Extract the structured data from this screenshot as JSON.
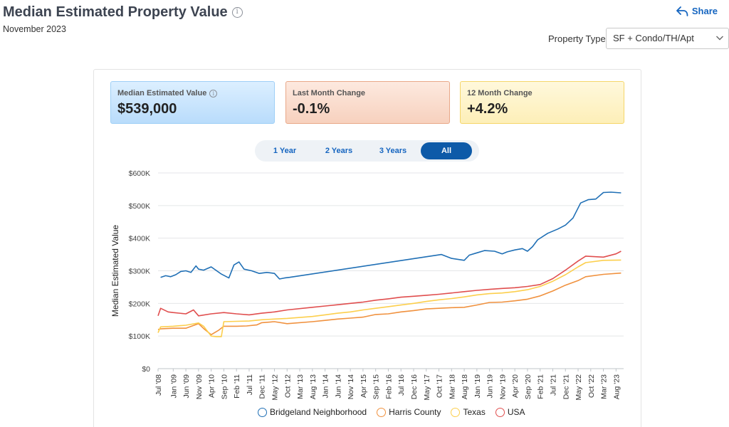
{
  "header": {
    "title": "Median Estimated Property Value",
    "subtitle": "November 2023",
    "share_label": "Share"
  },
  "filter": {
    "label": "Property Type",
    "value": "SF + Condo/TH/Apt"
  },
  "stats": [
    {
      "label": "Median Estimated Value",
      "value": "$539,000"
    },
    {
      "label": "Last Month Change",
      "value": "-0.1%"
    },
    {
      "label": "12 Month Change",
      "value": "+4.2%"
    }
  ],
  "range_buttons": [
    "1 Year",
    "2 Years",
    "3 Years",
    "All"
  ],
  "active_range": "All",
  "colors": {
    "Bridgeland Neighborhood": "#1f6fb5",
    "Harris County": "#f0913e",
    "Texas": "#fccf4d",
    "USA": "#e04e4e",
    "accent": "#1565c0"
  },
  "chart_data": {
    "type": "line",
    "ylabel": "Median Estimated Value",
    "xlabel": "",
    "ylim": [
      0,
      600000
    ],
    "yticks": [
      0,
      100000,
      200000,
      300000,
      400000,
      500000,
      600000
    ],
    "yticklabels": [
      "$0",
      "$100K",
      "$200K",
      "$300K",
      "$400K",
      "$500K",
      "$600K"
    ],
    "xlim": [
      "2008-07",
      "2023-11"
    ],
    "xticks": [
      "2008-07",
      "2009-01",
      "2009-06",
      "2009-11",
      "2010-04",
      "2010-09",
      "2011-02",
      "2011-07",
      "2011-12",
      "2012-05",
      "2012-10",
      "2013-03",
      "2013-08",
      "2014-01",
      "2014-06",
      "2014-11",
      "2015-04",
      "2015-09",
      "2016-02",
      "2016-07",
      "2016-12",
      "2017-05",
      "2017-10",
      "2018-03",
      "2018-08",
      "2019-01",
      "2019-06",
      "2019-11",
      "2020-04",
      "2020-09",
      "2021-02",
      "2021-07",
      "2021-12",
      "2022-05",
      "2022-10",
      "2023-03",
      "2023-08"
    ],
    "xticklabels": [
      "Jul '08",
      "Jan '09",
      "Jun '09",
      "Nov '09",
      "Apr '10",
      "Sep '10",
      "Feb '11",
      "Jul '11",
      "Dec '11",
      "May '12",
      "Oct '12",
      "Mar '13",
      "Aug '13",
      "Jan '14",
      "Jun '14",
      "Nov '14",
      "Apr '15",
      "Sep '15",
      "Feb '16",
      "Jul '16",
      "Dec '16",
      "May '17",
      "Oct '17",
      "Mar '18",
      "Aug '18",
      "Jan '19",
      "Jun '19",
      "Nov '19",
      "Apr '20",
      "Sep '20",
      "Feb '21",
      "Jul '21",
      "Dec '21",
      "May '22",
      "Oct '22",
      "Mar '23",
      "Aug '23"
    ],
    "grid": true,
    "legend_position": "bottom",
    "series": [
      {
        "name": "Bridgeland Neighborhood",
        "x": [
          "2008-08",
          "2008-10",
          "2008-12",
          "2009-02",
          "2009-04",
          "2009-06",
          "2009-08",
          "2009-10",
          "2009-11",
          "2010-01",
          "2010-04",
          "2010-08",
          "2010-11",
          "2011-01",
          "2011-03",
          "2011-05",
          "2011-08",
          "2011-11",
          "2012-02",
          "2012-05",
          "2012-07",
          "2012-09",
          "2012-11",
          "2017-11",
          "2018-03",
          "2018-08",
          "2018-10",
          "2019-01",
          "2019-04",
          "2019-08",
          "2019-11",
          "2020-01",
          "2020-04",
          "2020-07",
          "2020-09",
          "2020-11",
          "2021-01",
          "2021-05",
          "2021-09",
          "2021-12",
          "2022-03",
          "2022-06",
          "2022-09",
          "2022-12",
          "2023-03",
          "2023-06",
          "2023-10"
        ],
        "y": [
          280000,
          285000,
          282000,
          288000,
          298000,
          300000,
          295000,
          315000,
          305000,
          302000,
          312000,
          290000,
          278000,
          318000,
          327000,
          305000,
          300000,
          292000,
          295000,
          292000,
          275000,
          278000,
          280000,
          350000,
          338000,
          332000,
          348000,
          355000,
          362000,
          360000,
          352000,
          358000,
          364000,
          368000,
          360000,
          374000,
          395000,
          415000,
          428000,
          440000,
          462000,
          508000,
          518000,
          520000,
          540000,
          541000,
          539000
        ]
      },
      {
        "name": "Harris County",
        "x": [
          "2008-07",
          "2008-08",
          "2009-01",
          "2009-06",
          "2009-11",
          "2010-01",
          "2010-04",
          "2010-07",
          "2010-09",
          "2011-02",
          "2011-06",
          "2011-10",
          "2011-12",
          "2012-05",
          "2012-10",
          "2013-08",
          "2014-01",
          "2014-06",
          "2014-11",
          "2015-04",
          "2015-09",
          "2016-02",
          "2016-07",
          "2016-12",
          "2017-05",
          "2017-10",
          "2018-03",
          "2018-08",
          "2019-01",
          "2019-06",
          "2019-11",
          "2020-04",
          "2020-09",
          "2021-02",
          "2021-07",
          "2021-12",
          "2022-05",
          "2022-08",
          "2023-03",
          "2023-10"
        ],
        "y": [
          120000,
          122000,
          124000,
          124000,
          138000,
          123000,
          104000,
          118000,
          130000,
          130000,
          131000,
          134000,
          141000,
          144000,
          138000,
          144000,
          148000,
          152000,
          155000,
          158000,
          166000,
          168000,
          174000,
          178000,
          183000,
          185000,
          187000,
          188000,
          195000,
          203000,
          204000,
          208000,
          213000,
          223000,
          238000,
          256000,
          270000,
          282000,
          289000,
          293000
        ]
      },
      {
        "name": "Texas",
        "x": [
          "2008-07",
          "2008-08",
          "2009-01",
          "2009-06",
          "2009-11",
          "2010-01",
          "2010-04",
          "2010-06",
          "2010-08",
          "2010-09",
          "2011-02",
          "2011-07",
          "2011-12",
          "2012-05",
          "2012-10",
          "2013-08",
          "2014-01",
          "2014-06",
          "2014-11",
          "2015-04",
          "2015-09",
          "2016-02",
          "2016-07",
          "2016-12",
          "2017-05",
          "2017-10",
          "2018-03",
          "2018-08",
          "2019-01",
          "2019-06",
          "2019-11",
          "2020-04",
          "2020-09",
          "2021-02",
          "2021-07",
          "2021-12",
          "2022-05",
          "2022-08",
          "2023-03",
          "2023-10"
        ],
        "y": [
          110000,
          128000,
          130000,
          133000,
          140000,
          130000,
          100000,
          98000,
          98000,
          144000,
          145000,
          146000,
          150000,
          152000,
          154000,
          160000,
          165000,
          170000,
          174000,
          180000,
          185000,
          190000,
          195000,
          200000,
          206000,
          211000,
          215000,
          220000,
          226000,
          230000,
          232000,
          236000,
          242000,
          252000,
          268000,
          288000,
          312000,
          325000,
          332000,
          333000
        ]
      },
      {
        "name": "USA",
        "x": [
          "2008-07",
          "2008-08",
          "2008-11",
          "2009-01",
          "2009-06",
          "2009-09",
          "2009-11",
          "2010-04",
          "2010-09",
          "2011-02",
          "2011-07",
          "2011-12",
          "2012-05",
          "2012-10",
          "2013-08",
          "2014-01",
          "2014-06",
          "2014-11",
          "2015-04",
          "2015-09",
          "2016-02",
          "2016-07",
          "2016-12",
          "2017-05",
          "2017-10",
          "2018-03",
          "2018-08",
          "2019-01",
          "2019-06",
          "2019-11",
          "2020-04",
          "2020-09",
          "2021-02",
          "2021-07",
          "2021-12",
          "2022-05",
          "2022-08",
          "2023-03",
          "2023-08",
          "2023-10"
        ],
        "y": [
          162000,
          185000,
          174000,
          172000,
          168000,
          180000,
          162000,
          168000,
          172000,
          168000,
          165000,
          170000,
          174000,
          180000,
          188000,
          192000,
          196000,
          200000,
          204000,
          210000,
          214000,
          219000,
          222000,
          225000,
          228000,
          232000,
          236000,
          240000,
          243000,
          246000,
          248000,
          252000,
          258000,
          276000,
          302000,
          330000,
          345000,
          342000,
          352000,
          360000
        ]
      }
    ]
  }
}
